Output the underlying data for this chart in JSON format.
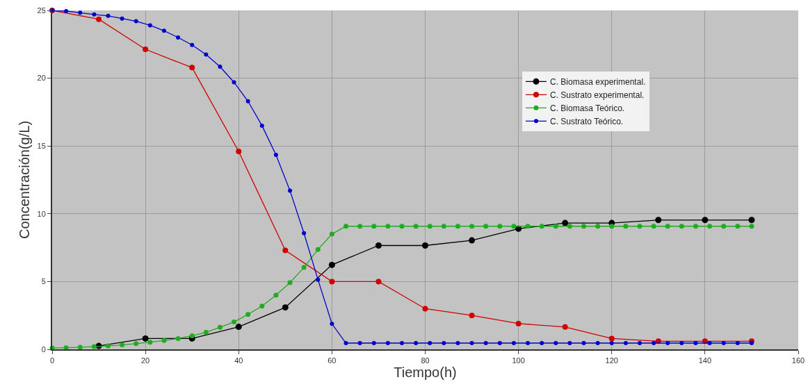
{
  "chart_data": {
    "type": "line",
    "xlabel": "Tiempo(h)",
    "ylabel": "Concentración(g/L)",
    "xlim": [
      0,
      160
    ],
    "xticks": [
      0,
      20,
      40,
      60,
      80,
      100,
      120,
      140,
      160
    ],
    "ylim": [
      0,
      25
    ],
    "yticks": [
      0,
      5,
      10,
      15,
      20,
      25
    ],
    "grid": true,
    "legend": "top right",
    "marker": "circle",
    "line_style": "solid",
    "series": [
      {
        "name": "C. Biomasa experimental.",
        "color": "#000000",
        "x": [
          10,
          20,
          30,
          40,
          50,
          60,
          70,
          80,
          90,
          100,
          110,
          120,
          130,
          140,
          150
        ],
        "values": [
          0.25,
          0.8,
          0.8,
          1.66,
          3.09,
          6.23,
          7.66,
          7.66,
          8.04,
          8.9,
          9.32,
          9.32,
          9.54,
          9.54,
          9.54
        ]
      },
      {
        "name": "C. Sustrato experimental.",
        "color": "#d00000",
        "x": [
          0,
          10,
          20,
          30,
          40,
          50,
          60,
          70,
          80,
          90,
          100,
          110,
          120,
          130,
          140,
          150
        ],
        "values": [
          25,
          24.35,
          22.13,
          20.78,
          14.6,
          7.3,
          5.0,
          5.0,
          3.0,
          2.5,
          1.9,
          1.65,
          0.8,
          0.6,
          0.6,
          0.6
        ]
      },
      {
        "name": "C. Biomasa Teórico.",
        "color": "#22aa22",
        "x": [
          0,
          3,
          6,
          9,
          12,
          15,
          18,
          21,
          24,
          27,
          30,
          33,
          36,
          39,
          42,
          45,
          48,
          51,
          54,
          57,
          60,
          63,
          66,
          69,
          72,
          75,
          78,
          81,
          84,
          87,
          90,
          93,
          96,
          99,
          102,
          105,
          108,
          111,
          114,
          117,
          120,
          123,
          126,
          129,
          132,
          135,
          138,
          141,
          144,
          147,
          150
        ],
        "values": [
          0.1,
          0.12,
          0.15,
          0.2,
          0.25,
          0.33,
          0.42,
          0.53,
          0.65,
          0.8,
          1.0,
          1.25,
          1.63,
          2.02,
          2.58,
          3.19,
          4.0,
          4.92,
          6.04,
          7.37,
          8.5,
          9.08,
          9.08,
          9.08,
          9.08,
          9.08,
          9.08,
          9.08,
          9.08,
          9.08,
          9.08,
          9.08,
          9.08,
          9.08,
          9.08,
          9.08,
          9.08,
          9.08,
          9.08,
          9.08,
          9.08,
          9.08,
          9.08,
          9.08,
          9.08,
          9.08,
          9.08,
          9.08,
          9.08,
          9.08,
          9.08
        ]
      },
      {
        "name": "C. Sustrato Teórico.",
        "color": "#0000cc",
        "x": [
          0,
          3,
          6,
          9,
          12,
          15,
          18,
          21,
          24,
          27,
          30,
          33,
          36,
          39,
          42,
          45,
          48,
          51,
          54,
          57,
          60,
          63,
          66,
          69,
          72,
          75,
          78,
          81,
          84,
          87,
          90,
          93,
          96,
          99,
          102,
          105,
          108,
          111,
          114,
          117,
          120,
          123,
          126,
          129,
          132,
          135,
          138,
          141,
          144,
          147,
          150
        ],
        "values": [
          25,
          24.95,
          24.83,
          24.7,
          24.6,
          24.4,
          24.2,
          23.9,
          23.5,
          23.0,
          22.45,
          21.75,
          20.85,
          19.7,
          18.3,
          16.5,
          14.35,
          11.7,
          8.57,
          5.14,
          1.88,
          0.46,
          0.46,
          0.46,
          0.46,
          0.46,
          0.46,
          0.46,
          0.46,
          0.46,
          0.46,
          0.46,
          0.46,
          0.46,
          0.46,
          0.46,
          0.46,
          0.46,
          0.46,
          0.46,
          0.46,
          0.46,
          0.46,
          0.46,
          0.46,
          0.46,
          0.46,
          0.46,
          0.46,
          0.46,
          0.46
        ]
      }
    ]
  }
}
